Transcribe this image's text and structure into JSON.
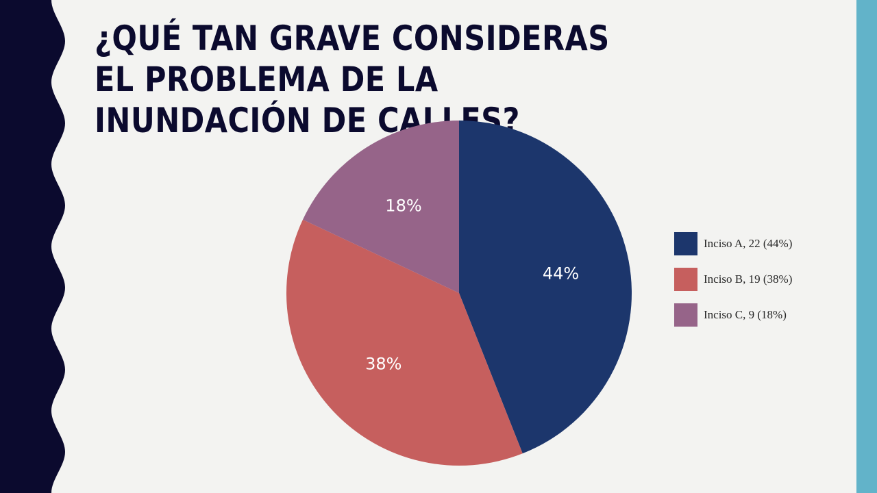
{
  "slide": {
    "title": "¿Qué tan grave consideras el problema de la inundación de calles?",
    "colors": {
      "background": "#f3f3f1",
      "left_band": "#0b0a2e",
      "right_stripe": "#62b3c9",
      "title_text": "#0b0a2e"
    }
  },
  "chart_data": {
    "type": "pie",
    "title": "",
    "categories": [
      "Inciso A",
      "Inciso B",
      "Inciso C"
    ],
    "values": [
      22,
      19,
      9
    ],
    "percent_labels": [
      "44%",
      "38%",
      "18%"
    ],
    "colors": [
      "#1c366c",
      "#c65f5e",
      "#966489"
    ],
    "legend": {
      "position": "right",
      "entries": [
        "Inciso A, 22 (44%)",
        "Inciso B, 19 (38%)",
        "Inciso C, 9 (18%)"
      ]
    }
  }
}
